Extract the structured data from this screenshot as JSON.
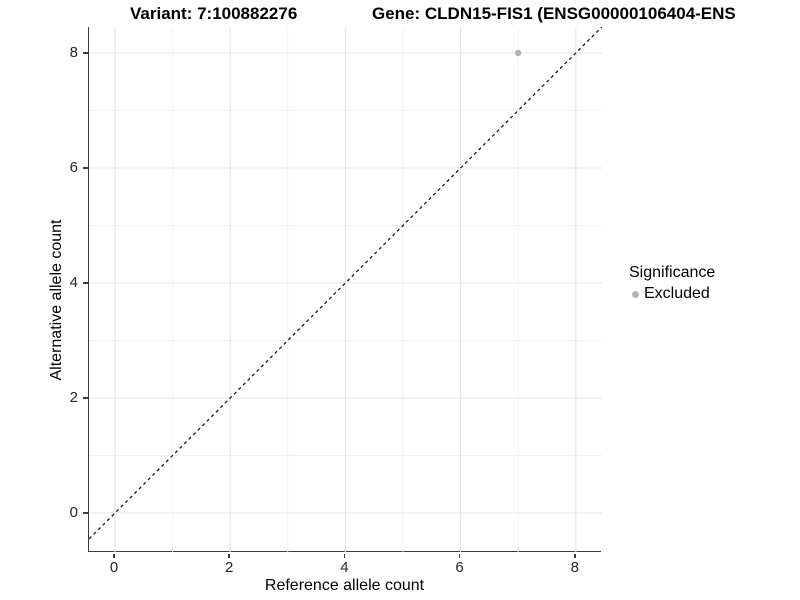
{
  "chart_data": {
    "type": "scatter",
    "title": "Variant: 7:100882276",
    "secondary_title": "Gene: CLDN15-FIS1 (ENSG00000106404-ENS",
    "xlabel": "Reference allele count",
    "ylabel": "Alternative allele count",
    "xlim": [
      -0.45,
      8.45
    ],
    "ylim": [
      -0.68,
      8.45
    ],
    "x_ticks": [
      0,
      2,
      4,
      6,
      8
    ],
    "y_ticks": [
      0,
      2,
      4,
      6,
      8
    ],
    "x_minor_ticks": [
      1,
      3,
      5,
      7
    ],
    "y_minor_ticks": [
      1,
      3,
      5,
      7
    ],
    "grid": "major+minor",
    "reference_line": {
      "type": "identity",
      "equation": "y = x",
      "style": "dashed",
      "color": "#1a1a1a"
    },
    "series": [
      {
        "name": "Excluded",
        "color": "#b2b2b2",
        "points": [
          {
            "x": 7,
            "y": 8
          }
        ]
      }
    ],
    "legend_position": "right",
    "legend_title": "Significance",
    "colors": {
      "background": "#ffffff",
      "grid_major": "#e4e4e4",
      "grid_minor": "#f1f1f1",
      "axis_line": "#3d3d3d",
      "tick_label": "#262626",
      "text": "#000000"
    }
  }
}
